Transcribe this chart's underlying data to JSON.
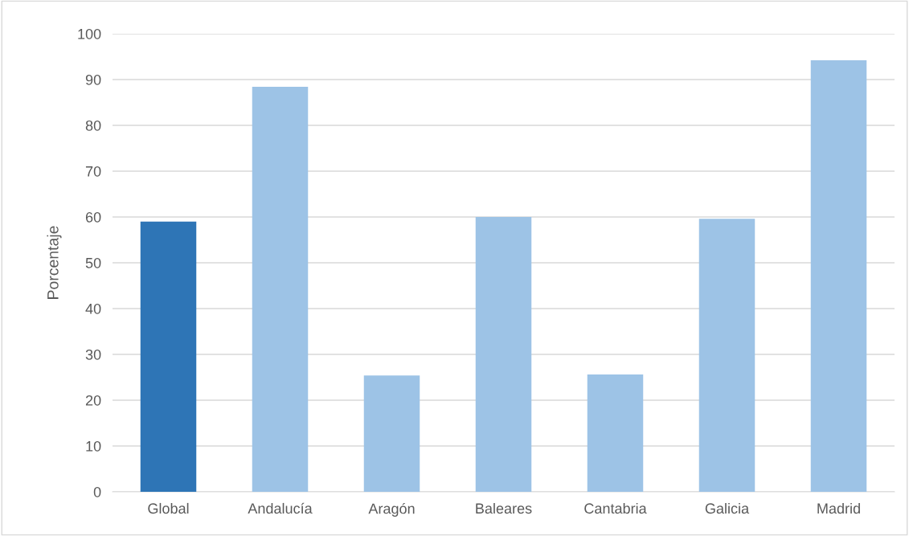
{
  "chart_data": {
    "type": "bar",
    "ylabel": "Porcentaje",
    "categories": [
      "Global",
      "Andalucía",
      "Aragón",
      "Baleares",
      "Cantabria",
      "Galicia",
      "Madrid"
    ],
    "values": [
      59,
      88.4,
      25.4,
      60.0,
      25.6,
      59.6,
      94.2
    ],
    "colors": [
      "#2e75b6",
      "#9dc3e6",
      "#9dc3e6",
      "#9dc3e6",
      "#9dc3e6",
      "#9dc3e6",
      "#9dc3e6"
    ],
    "ylim": [
      0,
      100
    ],
    "yticks": [
      0,
      10,
      20,
      30,
      40,
      50,
      60,
      70,
      80,
      90,
      100
    ],
    "grid": "y",
    "legend": false
  }
}
